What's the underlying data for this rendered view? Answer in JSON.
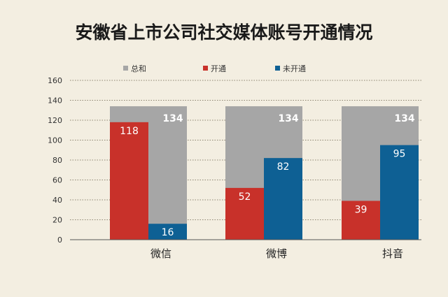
{
  "chart_data": {
    "type": "bar",
    "title": "安徽省上市公司社交媒体账号开通情况",
    "categories": [
      "微信",
      "微博",
      "抖音"
    ],
    "series": [
      {
        "name": "总和",
        "values": [
          134,
          134,
          134
        ],
        "color": "#a6a6a6"
      },
      {
        "name": "开通",
        "values": [
          118,
          52,
          39
        ],
        "color": "#c8312a"
      },
      {
        "name": "未开通",
        "values": [
          16,
          82,
          95
        ],
        "color": "#0e6094"
      }
    ],
    "ylim": [
      0,
      160
    ],
    "yticks": [
      0,
      20,
      40,
      60,
      80,
      100,
      120,
      140,
      160
    ],
    "grid": true,
    "legend_position": "top",
    "xlabel": "",
    "ylabel": ""
  }
}
